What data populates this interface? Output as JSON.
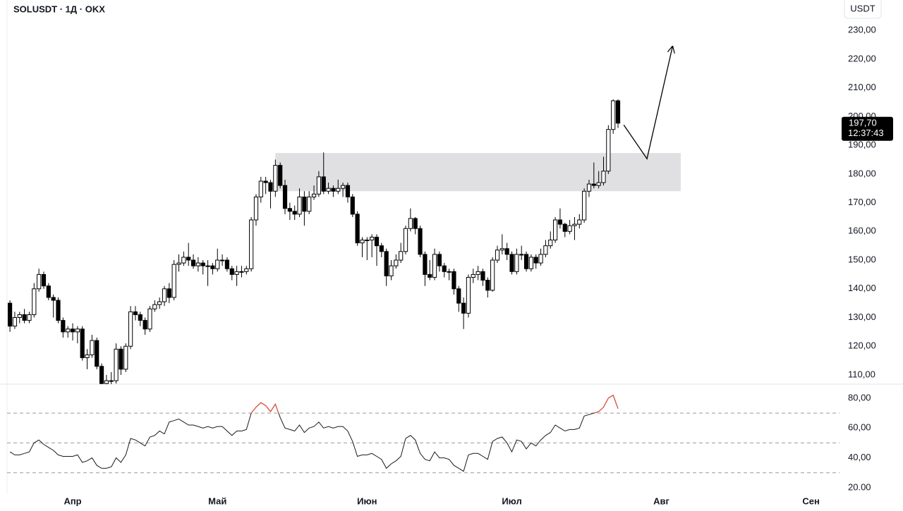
{
  "chart_data": {
    "type": "candlestick",
    "title": "SOLUSDT · 1Д · OKX",
    "currency_button": "USDT",
    "up_color": "#ffffff",
    "down_color": "#000000",
    "x": [
      -13,
      -12,
      -11,
      -10,
      -9,
      -8,
      -7,
      -6,
      -5,
      -4,
      -3,
      -2,
      -1,
      0,
      1,
      2,
      3,
      4,
      5,
      6,
      7,
      8,
      9,
      10,
      11,
      12,
      13,
      14,
      15,
      16,
      17,
      18,
      19,
      20,
      21,
      22,
      23,
      24,
      25,
      26,
      27,
      28,
      29,
      30,
      31,
      32,
      33,
      34,
      35,
      36,
      37,
      38,
      39,
      40,
      41,
      42,
      43,
      44,
      45,
      46,
      47,
      48,
      49,
      50,
      51,
      52,
      53,
      54,
      55,
      56,
      57,
      58,
      59,
      60,
      61,
      62,
      63,
      64,
      65,
      66,
      67,
      68,
      69,
      70,
      71,
      72,
      73,
      74,
      75,
      76,
      77,
      78,
      79,
      80,
      81,
      82,
      83,
      84,
      85,
      86,
      87,
      88,
      89,
      90,
      91,
      92,
      93,
      94,
      95,
      96,
      97,
      98,
      99,
      100,
      101,
      102,
      103,
      104,
      105,
      106,
      107,
      108,
      109,
      110,
      111,
      112,
      113
    ],
    "open": [
      135,
      127,
      130,
      131,
      129,
      131,
      140,
      145,
      141,
      137,
      136,
      129,
      125,
      126,
      125,
      126,
      116,
      117,
      122,
      113,
      107,
      108,
      108,
      119,
      112,
      120,
      132,
      131,
      129,
      126,
      133,
      134.5,
      135.5,
      140,
      137,
      148.5,
      149,
      151,
      150,
      148,
      149,
      148,
      148,
      147,
      150,
      150,
      147,
      145,
      146,
      146,
      147,
      164,
      172,
      177.5,
      177,
      174,
      183,
      176,
      168,
      167,
      166,
      172,
      167,
      172,
      173,
      179,
      174,
      175,
      174,
      175,
      176,
      172,
      166,
      156,
      157,
      157,
      158,
      155,
      153,
      144.5,
      148,
      150,
      153,
      161,
      164.5,
      161,
      152,
      145,
      144,
      152,
      148,
      146,
      146,
      140,
      135,
      131.5,
      144,
      145,
      146,
      143,
      139.5,
      150,
      153.5,
      154,
      152,
      146,
      152,
      152,
      147,
      151,
      149,
      152,
      155,
      157,
      164,
      162.5,
      160,
      162,
      162.5,
      164,
      174,
      176.5,
      176,
      177,
      181,
      195.5,
      205.5
    ],
    "high": [
      136,
      132,
      132,
      133,
      132,
      142,
      147,
      146,
      142,
      138,
      137,
      130,
      127,
      128,
      127,
      127,
      119,
      124,
      123,
      114,
      110,
      111,
      121,
      120,
      121,
      134,
      134,
      132,
      130,
      134,
      136,
      137,
      141,
      142,
      150,
      152,
      153,
      156,
      152,
      151,
      150,
      150,
      149,
      154,
      152,
      151,
      148,
      148,
      148,
      148,
      165,
      173,
      179,
      179,
      178,
      185,
      184,
      178,
      170,
      169,
      175,
      174,
      174,
      176,
      181,
      187.5,
      177,
      176,
      178,
      177,
      177,
      173,
      167,
      158,
      158,
      159,
      159,
      156,
      154,
      150,
      152,
      156,
      162,
      168,
      165,
      162,
      153,
      150,
      154,
      153,
      149,
      147,
      147,
      141,
      137,
      145,
      147,
      148,
      147,
      144,
      151,
      155,
      159,
      156,
      153,
      154,
      155,
      153,
      152,
      152,
      154,
      157,
      160,
      165,
      168,
      163,
      164,
      165,
      166,
      175,
      178,
      184,
      181,
      186,
      197,
      206,
      206
    ],
    "low": [
      125,
      126,
      128,
      128,
      128,
      130,
      139,
      140,
      136,
      130,
      128,
      123,
      123,
      122,
      121,
      115,
      112,
      116,
      112,
      106,
      104,
      105,
      107,
      110,
      111,
      119,
      129,
      127,
      124,
      125,
      132,
      133,
      134,
      135,
      136,
      146,
      148,
      148,
      147,
      146,
      145,
      141,
      145,
      146,
      148,
      146,
      143,
      141,
      144,
      145,
      146,
      162,
      170,
      173,
      168,
      172,
      175,
      166,
      164,
      164,
      165,
      162,
      166,
      171,
      172,
      173,
      173,
      172,
      173,
      172,
      170,
      165,
      155,
      151,
      150,
      151,
      148,
      151,
      141,
      143,
      147,
      149,
      152,
      160,
      159,
      151,
      141,
      143,
      143,
      146,
      144,
      143,
      138,
      132,
      126,
      130,
      142,
      143,
      141,
      137,
      139,
      149,
      152,
      150,
      145,
      145,
      150,
      146,
      146,
      147,
      148,
      151,
      154,
      156,
      161,
      158,
      159,
      157,
      161,
      163,
      172,
      175,
      175,
      176,
      180,
      194,
      196
    ],
    "close": [
      127,
      130,
      131,
      129,
      131,
      140,
      145,
      141,
      137,
      136,
      129,
      125,
      126,
      125,
      126,
      116,
      117,
      122,
      113,
      107,
      108,
      108,
      119,
      112,
      120,
      132,
      131,
      129,
      126,
      133,
      134.5,
      135.5,
      140,
      137,
      148.5,
      149,
      151,
      150,
      148,
      149,
      148,
      148,
      147,
      150,
      150,
      147,
      145,
      146,
      146,
      147,
      164,
      172,
      177.5,
      177,
      174,
      183,
      176,
      168,
      167,
      166,
      172,
      167,
      172,
      173,
      179,
      174,
      175,
      174,
      175,
      176,
      172,
      166,
      156,
      157,
      157,
      158,
      155,
      153,
      144.5,
      148,
      150,
      153,
      161,
      164.5,
      161,
      152,
      145,
      144,
      152,
      148,
      146,
      146,
      140,
      135,
      131.5,
      144,
      145,
      146,
      143,
      139.5,
      150,
      153.5,
      154,
      152,
      146,
      152,
      152,
      147,
      151,
      149,
      152,
      155,
      157,
      164,
      162.5,
      160,
      162,
      162.5,
      164,
      174,
      176.5,
      176,
      177,
      181,
      195.5,
      205.5,
      197.7
    ],
    "xlim": [
      -13.6,
      158.9
    ],
    "xticks": [
      {
        "value": 0,
        "label": "Апр"
      },
      {
        "value": 30,
        "label": "Май"
      },
      {
        "value": 61,
        "label": "Июн"
      },
      {
        "value": 91,
        "label": "Июл"
      },
      {
        "value": 122,
        "label": "Авг"
      },
      {
        "value": 153,
        "label": "Сен"
      }
    ],
    "ylim": [
      106.8,
      240.6
    ],
    "yticks": [
      {
        "value": 110,
        "label": "110,00"
      },
      {
        "value": 120,
        "label": "120,00"
      },
      {
        "value": 130,
        "label": "130,00"
      },
      {
        "value": 140,
        "label": "140,00"
      },
      {
        "value": 150,
        "label": "150,00"
      },
      {
        "value": 160,
        "label": "160,00"
      },
      {
        "value": 170,
        "label": "170,00"
      },
      {
        "value": 180,
        "label": "180,00"
      },
      {
        "value": 190,
        "label": "190,00"
      },
      {
        "value": 200,
        "label": "200,00"
      },
      {
        "value": 210,
        "label": "210,00"
      },
      {
        "value": 220,
        "label": "220,00"
      },
      {
        "value": 230,
        "label": "230,00"
      }
    ],
    "zone": {
      "color": "#e0e0e2",
      "x": [
        42,
        126
      ],
      "y": [
        174,
        187.3
      ]
    },
    "projection": {
      "color": "#000000",
      "x": [
        114.2,
        119,
        124.3
      ],
      "y": [
        197.1,
        185.3,
        224.4
      ]
    },
    "price_tag": {
      "value": 197.7,
      "label": "197,70",
      "countdown": "12:37:43"
    },
    "rsi": {
      "type": "line",
      "color": "#1a1a1a",
      "overbought_color": "#e0503c",
      "values": [
        44,
        42,
        42,
        43,
        44,
        50,
        52,
        49,
        47,
        45,
        42,
        41,
        41,
        41,
        42,
        37,
        38,
        40,
        35,
        33,
        33,
        34,
        40,
        37,
        42,
        53,
        52,
        50,
        48,
        54,
        55,
        58,
        56,
        64,
        65,
        66,
        64,
        62,
        62,
        61,
        60,
        61,
        60,
        61,
        61,
        58,
        55,
        58,
        58,
        59,
        70,
        74,
        77,
        75,
        71,
        76,
        67,
        60,
        59,
        58,
        62,
        57,
        60,
        61,
        64,
        60,
        61,
        60,
        61,
        61,
        58,
        51,
        41,
        42,
        42,
        43,
        41,
        39,
        33,
        36,
        38,
        41,
        53,
        55,
        52,
        43,
        39,
        38,
        44,
        40,
        40,
        39,
        35,
        33,
        31,
        42,
        43,
        43,
        41,
        39,
        51,
        53,
        54,
        50,
        44,
        52,
        51,
        46,
        50,
        48,
        52,
        55,
        57,
        62,
        60,
        58,
        59,
        59,
        60,
        68,
        69,
        70,
        71,
        74,
        80,
        82,
        73
      ],
      "ylim": [
        16.2,
        89.4
      ],
      "yticks": [
        {
          "value": 20,
          "label": "20.00"
        },
        {
          "value": 40,
          "label": "40,00"
        },
        {
          "value": 60,
          "label": "60,00"
        },
        {
          "value": 80,
          "label": "80,00"
        }
      ],
      "levels": [
        70,
        50,
        30
      ]
    }
  }
}
